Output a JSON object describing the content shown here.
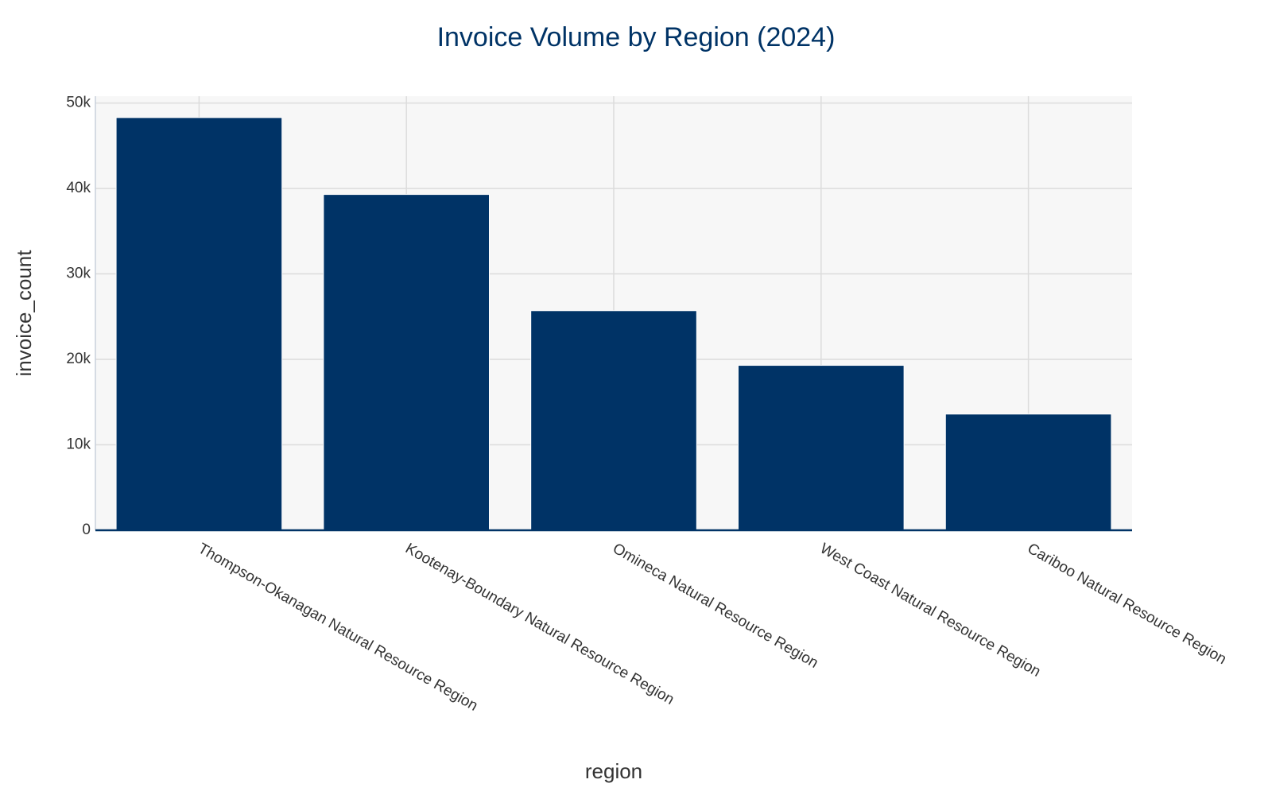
{
  "chart_data": {
    "type": "bar",
    "title": "Invoice Volume by Region (2024)",
    "x_label": "region",
    "y_label": "invoice_count",
    "categories": [
      "Thompson-Okanagan Natural Resource Region",
      "Kootenay-Boundary Natural Resource Region",
      "Omineca Natural Resource Region",
      "West Coast Natural Resource Region",
      "Cariboo Natural Resource Region"
    ],
    "values": [
      48300,
      39300,
      25700,
      19300,
      13600
    ],
    "color": "#003366",
    "ylim": [
      0,
      50800
    ],
    "yticks": [
      0,
      {
        "value": 10000,
        "label": "10k"
      },
      {
        "value": 20000,
        "label": "20k"
      },
      {
        "value": 30000,
        "label": "30k"
      },
      {
        "value": 40000,
        "label": "40k"
      },
      {
        "value": 50000,
        "label": "50k"
      }
    ],
    "grid": true
  }
}
